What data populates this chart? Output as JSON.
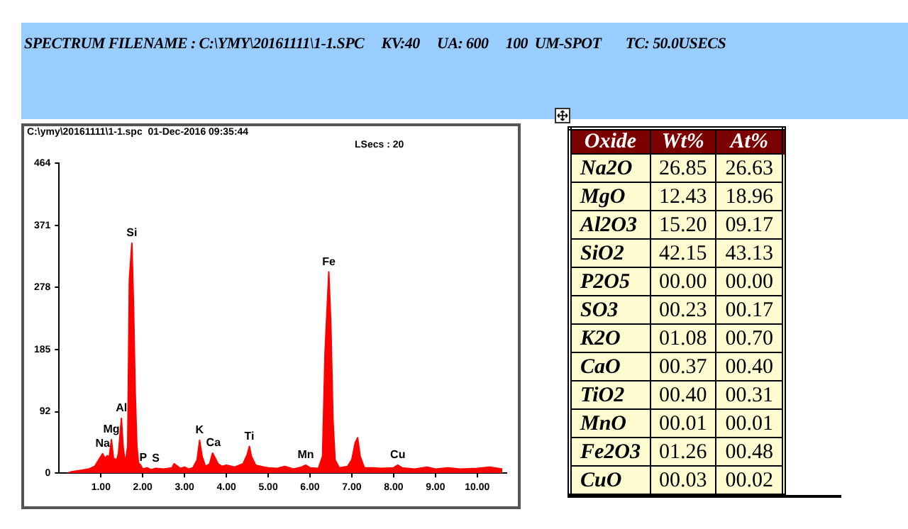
{
  "chart_data": [
    {
      "type": "area",
      "title": "SPECTRUM FILENAME : C:\\YMY\\20161111\\1-1.SPC     KV:40     UA: 600     100  UM-SPOT       TC: 50.0USECS",
      "subtitle": "C:\\ymy\\20161111\\1-1.spc  01-Dec-2016 09:35:44",
      "annotations": [
        "LSecs : 20",
        {
          "text": "Na",
          "x": 1.04,
          "y": 29
        },
        {
          "text": "Mg",
          "x": 1.25,
          "y": 50
        },
        {
          "text": "Al",
          "x": 1.49,
          "y": 82
        },
        {
          "text": "Si",
          "x": 1.74,
          "y": 344
        },
        {
          "text": "P",
          "x": 2.01,
          "y": 8
        },
        {
          "text": "S",
          "x": 2.31,
          "y": 7
        },
        {
          "text": "K",
          "x": 3.36,
          "y": 49
        },
        {
          "text": "Ca",
          "x": 3.69,
          "y": 30
        },
        {
          "text": "Ti",
          "x": 4.55,
          "y": 40
        },
        {
          "text": "Mn",
          "x": 5.9,
          "y": 12
        },
        {
          "text": "Fe",
          "x": 6.45,
          "y": 301
        },
        {
          "text": "Cu",
          "x": 8.1,
          "y": 12
        }
      ],
      "x": [
        0.2,
        0.3,
        0.5,
        0.7,
        0.85,
        0.95,
        1.04,
        1.1,
        1.15,
        1.2,
        1.25,
        1.3,
        1.38,
        1.42,
        1.49,
        1.53,
        1.58,
        1.64,
        1.68,
        1.74,
        1.78,
        1.82,
        1.86,
        1.9,
        1.95,
        2.0,
        2.1,
        2.2,
        2.3,
        2.5,
        2.7,
        2.75,
        2.9,
        3.0,
        3.1,
        3.2,
        3.3,
        3.36,
        3.42,
        3.5,
        3.6,
        3.67,
        3.72,
        3.8,
        3.9,
        4.0,
        4.2,
        4.4,
        4.5,
        4.55,
        4.6,
        4.7,
        4.9,
        5.0,
        5.2,
        5.4,
        5.6,
        5.8,
        5.9,
        6.0,
        6.2,
        6.3,
        6.36,
        6.45,
        6.5,
        6.55,
        6.6,
        6.7,
        6.9,
        7.0,
        7.08,
        7.14,
        7.2,
        7.3,
        7.5,
        7.7,
        8.0,
        8.1,
        8.2,
        8.5,
        8.8,
        9.0,
        9.3,
        9.6,
        10.0,
        10.3,
        10.6
      ],
      "series": [
        {
          "color": "#ff0000",
          "values": [
            0,
            2,
            4,
            6,
            10,
            20,
            29,
            22,
            26,
            24,
            50,
            22,
            20,
            30,
            82,
            40,
            15,
            40,
            290,
            344,
            250,
            120,
            40,
            15,
            12,
            6,
            8,
            5,
            7,
            6,
            8,
            14,
            7,
            9,
            6,
            8,
            20,
            49,
            25,
            10,
            14,
            30,
            24,
            14,
            10,
            12,
            9,
            14,
            28,
            40,
            25,
            12,
            9,
            8,
            7,
            10,
            6,
            9,
            12,
            8,
            7,
            25,
            180,
            301,
            220,
            80,
            20,
            8,
            10,
            20,
            45,
            53,
            25,
            8,
            8,
            7,
            8,
            12,
            8,
            6,
            9,
            6,
            8,
            6,
            7,
            9,
            6
          ]
        }
      ],
      "xlim": [
        0,
        10.7
      ],
      "ylim": [
        0,
        464
      ],
      "xticks": [
        {
          "value": 1,
          "label": "1.00"
        },
        {
          "value": 2,
          "label": "2.00"
        },
        {
          "value": 3,
          "label": "3.00"
        },
        {
          "value": 4,
          "label": "4.00"
        },
        {
          "value": 5,
          "label": "5.00"
        },
        {
          "value": 6,
          "label": "6.00"
        },
        {
          "value": 7,
          "label": "7.00"
        },
        {
          "value": 8,
          "label": "8.00"
        },
        {
          "value": 9,
          "label": "9.00"
        },
        {
          "value": 10,
          "label": "10.00"
        }
      ],
      "yticks": [
        0,
        92,
        185,
        278,
        371,
        464
      ],
      "marker": "none"
    },
    {
      "type": "other",
      "xlabel": "Oxide",
      "categories": [
        "Na2O",
        "MgO",
        "Al2O3",
        "SiO2",
        "P2O5",
        "SO3",
        "K2O",
        "CaO",
        "TiO2",
        "MnO",
        "Fe2O3",
        "CuO"
      ],
      "series": [
        {
          "name": "Wt%",
          "values": [
            26.85,
            12.43,
            15.2,
            42.15,
            0,
            0.23,
            1.08,
            0.37,
            0.4,
            0.01,
            1.26,
            0.03
          ],
          "value_labels": [
            "26.85",
            "12.43",
            "15.20",
            "42.15",
            "00.00",
            "00.23",
            "01.08",
            "00.37",
            "00.40",
            "00.01",
            "01.26",
            "00.03"
          ]
        },
        {
          "name": "At%",
          "values": [
            26.63,
            18.96,
            9.17,
            43.13,
            0,
            0.17,
            0.7,
            0.4,
            0.31,
            0.01,
            0.48,
            0.02
          ],
          "value_labels": [
            "26.63",
            "18.96",
            "09.17",
            "43.13",
            "00.00",
            "00.17",
            "00.70",
            "00.40",
            "00.31",
            "00.01",
            "00.48",
            "00.02"
          ]
        }
      ]
    }
  ]
}
